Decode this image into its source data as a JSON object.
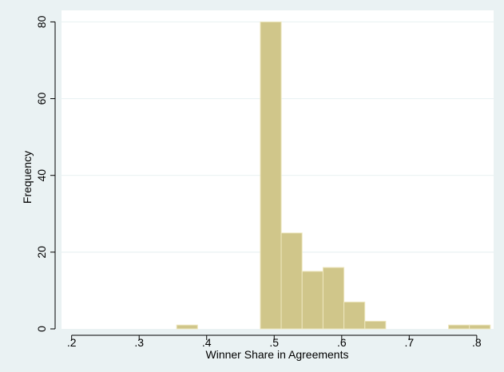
{
  "chart_data": {
    "type": "bar",
    "xlabel": "Winner Share in Agreements",
    "ylabel": "Frequency",
    "xlim": [
      0.185,
      0.825
    ],
    "ylim": [
      0,
      83
    ],
    "x_ticks": [
      0.2,
      0.3,
      0.4,
      0.5,
      0.6,
      0.7,
      0.8
    ],
    "x_tick_labels": [
      ".2",
      ".3",
      ".4",
      ".5",
      ".6",
      ".7",
      ".8"
    ],
    "y_ticks": [
      0,
      20,
      40,
      60,
      80
    ],
    "y_tick_labels": [
      "0",
      "20",
      "40",
      "60",
      "80"
    ],
    "bin_width": 0.0309,
    "bins": [
      {
        "start": 0.3556,
        "count": 1
      },
      {
        "start": 0.4795,
        "count": 80
      },
      {
        "start": 0.5104,
        "count": 25
      },
      {
        "start": 0.5414,
        "count": 15
      },
      {
        "start": 0.5724,
        "count": 16
      },
      {
        "start": 0.6033,
        "count": 7
      },
      {
        "start": 0.6343,
        "count": 2
      },
      {
        "start": 0.7582,
        "count": 1
      },
      {
        "start": 0.7891,
        "count": 1
      }
    ],
    "grid": true,
    "legend": "none",
    "colors": {
      "bar_fill": "#d0c68a",
      "bar_stroke": "#ede6bd",
      "plot_bg": "#ffffff",
      "outer_bg": "#eaf2f3",
      "grid": "#eaf2f3"
    }
  }
}
